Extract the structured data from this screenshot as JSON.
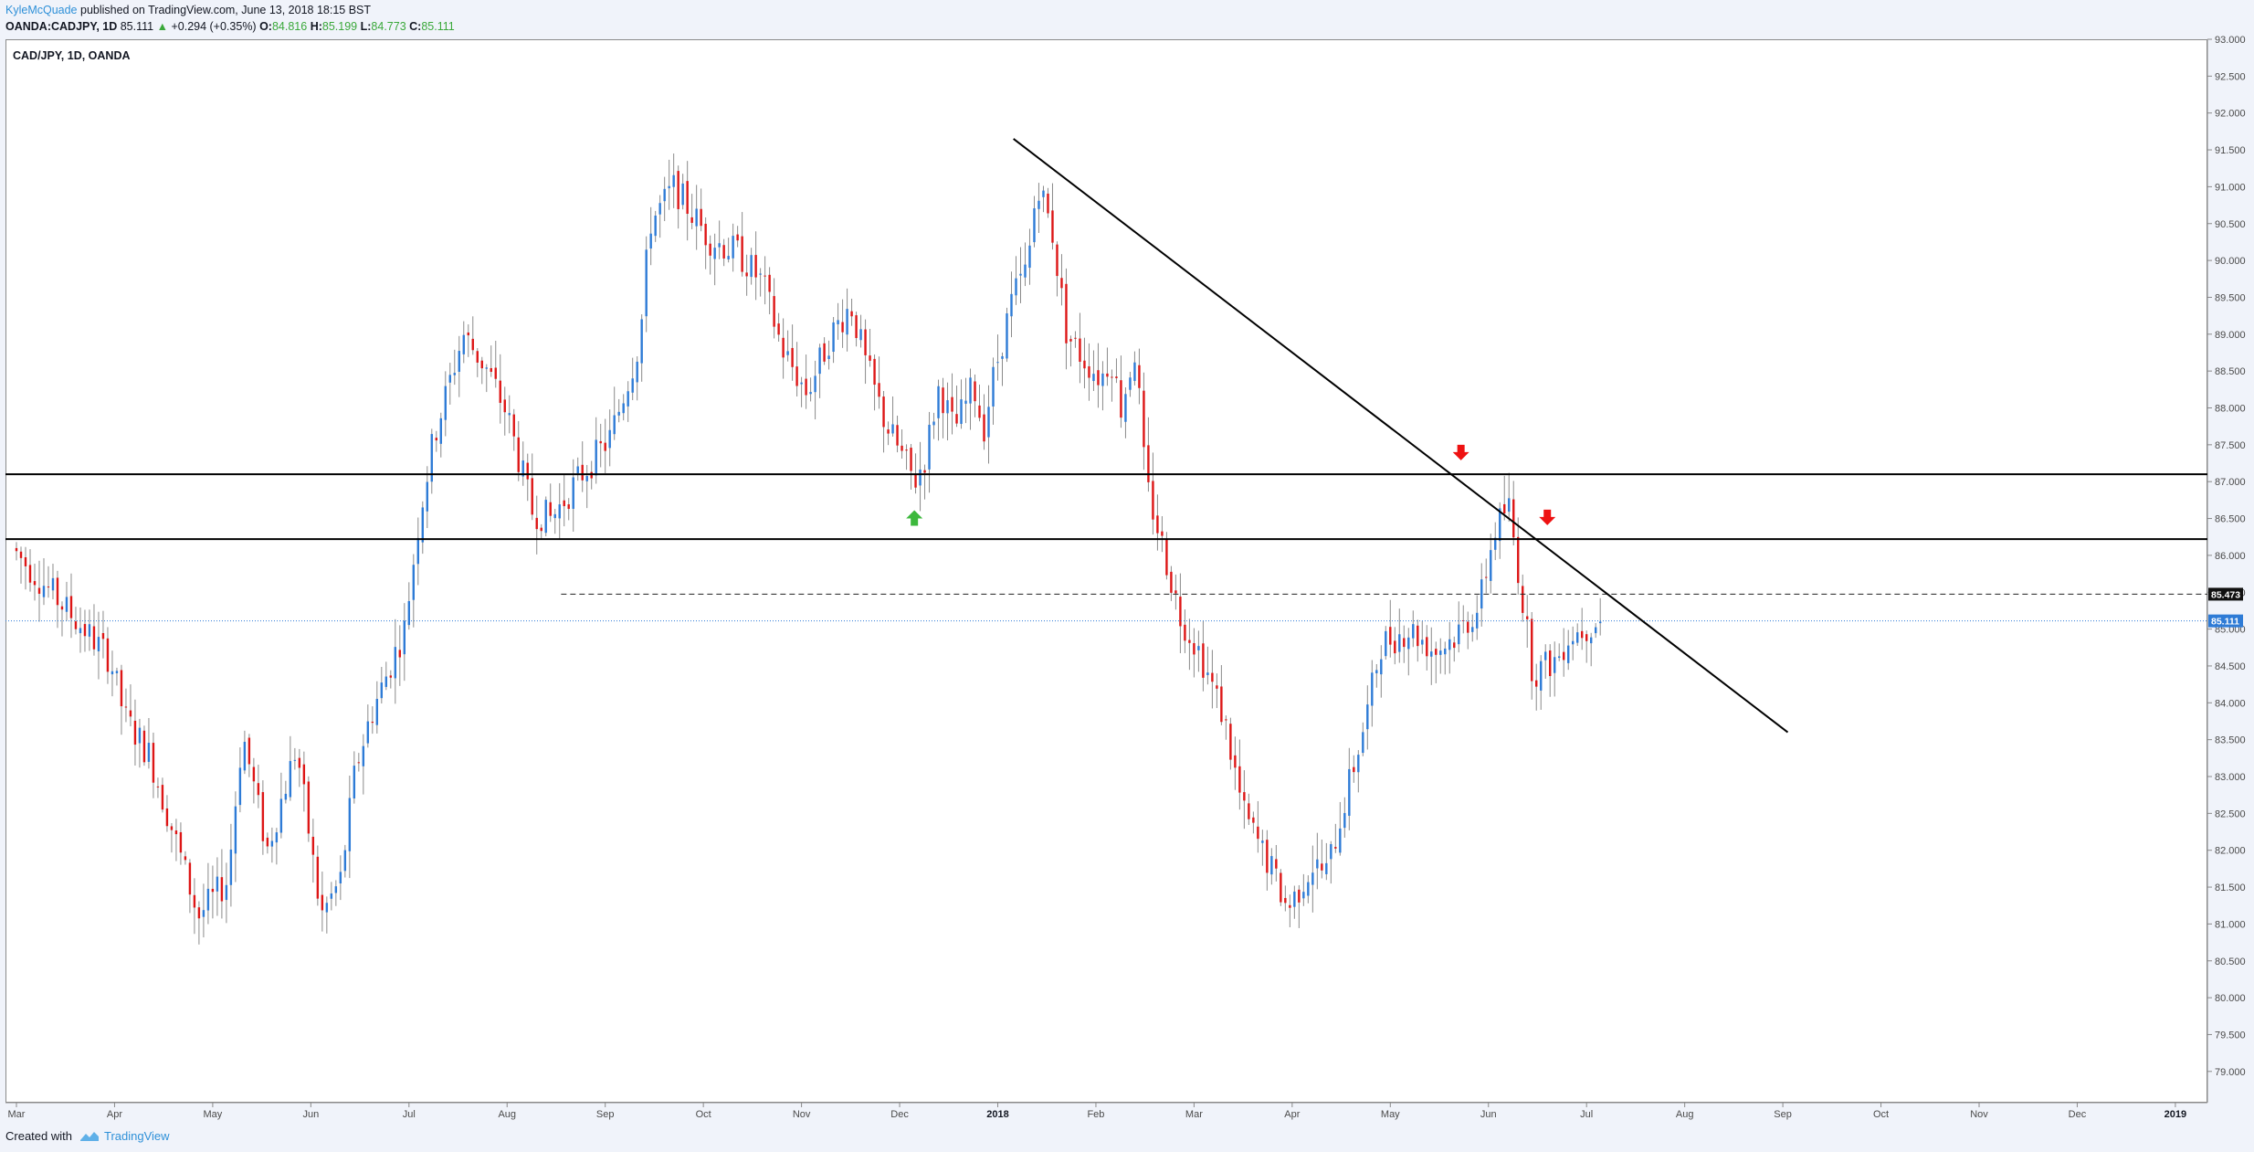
{
  "header": {
    "author": "KyleMcQuade",
    "published": " published on TradingView.com, June 13, 2018 18:15 BST",
    "symbol": "OANDA:CADJPY, 1D",
    "last": "85.111",
    "change_arrow": "▲",
    "change": "+0.294 (+0.35%)",
    "o_label": "O:",
    "o_value": "84.816",
    "h_label": "H:",
    "h_value": "85.199",
    "l_label": "L:",
    "l_value": "84.773",
    "c_label": "C:",
    "c_value": "85.111"
  },
  "pane_title": "CAD/JPY, 1D, OANDA",
  "footer": {
    "created_with": "Created with",
    "brand": "TradingView"
  },
  "colors": {
    "up": "#2e7bd6",
    "down": "#dd1616",
    "wick": "#8a8a8a",
    "line": "#000000",
    "current": "#2e7bd6",
    "up_arrow": "#3cb83c",
    "down_arrow": "#ee1111"
  },
  "chart_data": {
    "type": "candlestick",
    "title": "CAD/JPY, 1D, OANDA",
    "y_axis": {
      "min": 78.75,
      "max": 93.0,
      "ticks": [
        "93.000",
        "92.500",
        "92.000",
        "91.500",
        "91.000",
        "90.500",
        "90.000",
        "89.500",
        "89.000",
        "88.500",
        "88.000",
        "87.500",
        "87.000",
        "86.500",
        "86.000",
        "85.500",
        "85.000",
        "84.500",
        "84.000",
        "83.500",
        "83.000",
        "82.500",
        "82.000",
        "81.500",
        "81.000",
        "80.500",
        "80.000",
        "79.500",
        "79.000"
      ]
    },
    "x_axis": {
      "labels": [
        {
          "text": "Mar",
          "month": 0,
          "bold": false
        },
        {
          "text": "Apr",
          "month": 1,
          "bold": false
        },
        {
          "text": "May",
          "month": 2,
          "bold": false
        },
        {
          "text": "Jun",
          "month": 3,
          "bold": false
        },
        {
          "text": "Jul",
          "month": 4,
          "bold": false
        },
        {
          "text": "Aug",
          "month": 5,
          "bold": false
        },
        {
          "text": "Sep",
          "month": 6,
          "bold": false
        },
        {
          "text": "Oct",
          "month": 7,
          "bold": false
        },
        {
          "text": "Nov",
          "month": 8,
          "bold": false
        },
        {
          "text": "Dec",
          "month": 9,
          "bold": false
        },
        {
          "text": "2018",
          "month": 10,
          "bold": true
        },
        {
          "text": "Feb",
          "month": 11,
          "bold": false
        },
        {
          "text": "Mar",
          "month": 12,
          "bold": false
        },
        {
          "text": "Apr",
          "month": 13,
          "bold": false
        },
        {
          "text": "May",
          "month": 14,
          "bold": false
        },
        {
          "text": "Jun",
          "month": 15,
          "bold": false
        },
        {
          "text": "Jul",
          "month": 16,
          "bold": false
        },
        {
          "text": "Aug",
          "month": 17,
          "bold": false
        },
        {
          "text": "Sep",
          "month": 18,
          "bold": false
        },
        {
          "text": "Oct",
          "month": 19,
          "bold": false
        },
        {
          "text": "Nov",
          "month": 20,
          "bold": false
        },
        {
          "text": "Dec",
          "month": 21,
          "bold": false
        },
        {
          "text": "2019",
          "month": 22,
          "bold": true
        }
      ]
    },
    "price_path": [
      [
        0,
        86.1
      ],
      [
        0.8,
        84.9
      ],
      [
        1.0,
        84.6
      ],
      [
        1.15,
        83.8
      ],
      [
        1.4,
        83.3
      ],
      [
        1.7,
        82.0
      ],
      [
        1.9,
        81.1
      ],
      [
        2.2,
        81.6
      ],
      [
        2.35,
        83.6
      ],
      [
        2.6,
        82.0
      ],
      [
        2.9,
        83.4
      ],
      [
        3.15,
        81.1
      ],
      [
        3.35,
        81.6
      ],
      [
        3.5,
        83.1
      ],
      [
        3.65,
        83.8
      ],
      [
        4.0,
        85.0
      ],
      [
        4.15,
        86.5
      ],
      [
        4.3,
        87.6
      ],
      [
        4.6,
        89.0
      ],
      [
        4.85,
        88.5
      ],
      [
        5.05,
        87.9
      ],
      [
        5.3,
        86.6
      ],
      [
        5.5,
        86.5
      ],
      [
        5.75,
        87.0
      ],
      [
        6.1,
        87.6
      ],
      [
        6.4,
        88.9
      ],
      [
        6.5,
        90.5
      ],
      [
        6.75,
        91.0
      ],
      [
        7.1,
        90.3
      ],
      [
        7.4,
        90.1
      ],
      [
        7.65,
        89.7
      ],
      [
        7.85,
        88.8
      ],
      [
        8.1,
        88.2
      ],
      [
        8.35,
        89.0
      ],
      [
        8.55,
        89.4
      ],
      [
        8.7,
        88.6
      ],
      [
        8.9,
        87.8
      ],
      [
        9.2,
        87.0
      ],
      [
        9.3,
        87.3
      ],
      [
        9.45,
        88.3
      ],
      [
        9.6,
        87.7
      ],
      [
        9.8,
        88.3
      ],
      [
        9.9,
        87.7
      ],
      [
        10.0,
        88.4
      ],
      [
        10.2,
        89.5
      ],
      [
        10.35,
        89.9
      ],
      [
        10.45,
        91.1
      ],
      [
        10.6,
        90.4
      ],
      [
        10.75,
        89.0
      ],
      [
        10.9,
        88.7
      ],
      [
        11.1,
        88.4
      ],
      [
        11.2,
        88.7
      ],
      [
        11.3,
        88.0
      ],
      [
        11.45,
        88.8
      ],
      [
        11.55,
        87.0
      ],
      [
        11.75,
        86.0
      ],
      [
        11.9,
        85.2
      ],
      [
        12.1,
        84.7
      ],
      [
        12.35,
        83.8
      ],
      [
        12.55,
        82.5
      ],
      [
        12.85,
        81.7
      ],
      [
        13.0,
        81.2
      ],
      [
        13.25,
        81.8
      ],
      [
        13.4,
        81.7
      ],
      [
        13.55,
        82.5
      ],
      [
        13.8,
        83.8
      ],
      [
        13.95,
        84.8
      ],
      [
        14.25,
        85.0
      ],
      [
        14.5,
        84.7
      ],
      [
        14.7,
        84.9
      ],
      [
        14.95,
        85.3
      ],
      [
        15.1,
        86.3
      ],
      [
        15.25,
        86.7
      ],
      [
        15.35,
        85.8
      ],
      [
        15.5,
        84.4
      ],
      [
        15.75,
        84.6
      ],
      [
        15.85,
        84.9
      ],
      [
        16.0,
        85.0
      ],
      [
        16.15,
        85.11
      ]
    ],
    "lines": {
      "resistance_1": 87.1,
      "resistance_2": 86.22,
      "dashed_level": 85.473,
      "current_price": 85.111,
      "trendline": [
        [
          10.16,
          91.65
        ],
        [
          18.05,
          83.6
        ]
      ],
      "dashed_start_month": 5.55
    },
    "labels": {
      "dashed_level": "85.473",
      "current_price": "85.111"
    },
    "arrows": [
      {
        "dir": "up",
        "month": 9.15,
        "price": 86.5
      },
      {
        "dir": "down",
        "month": 14.72,
        "price": 87.4
      },
      {
        "dir": "down",
        "month": 15.6,
        "price": 86.52
      }
    ]
  }
}
